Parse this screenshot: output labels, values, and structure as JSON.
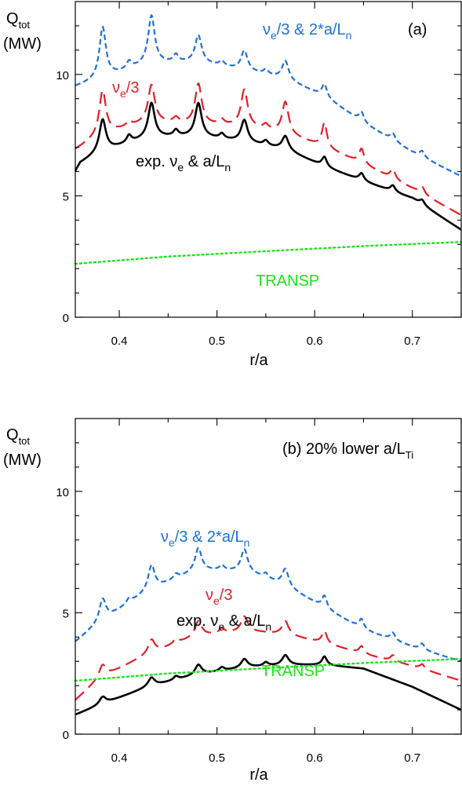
{
  "chart_data": [
    {
      "panel": "(a)",
      "type": "line",
      "title": "",
      "panel_label": "(a)",
      "ylabel": "Q",
      "ylabel_sub": "tot",
      "yunit": "(MW)",
      "xlabel": "r/a",
      "xlim": [
        0.355,
        0.75
      ],
      "ylim": [
        0,
        13
      ],
      "xticks": [
        0.4,
        0.5,
        0.6,
        0.7
      ],
      "xtick_labels": [
        "0.4",
        "0.5",
        "0.6",
        "0.7"
      ],
      "yticks": [
        0,
        5,
        10
      ],
      "ytick_labels": [
        "0",
        "5",
        "10"
      ],
      "grid": false,
      "series": [
        {
          "name": "ν_e/3 & 2*a/L_n",
          "color": "#1f6fd6",
          "style": "short-dash",
          "base": [
            [
              0.355,
              9.5
            ],
            [
              0.38,
              9.8
            ],
            [
              0.43,
              10.45
            ],
            [
              0.48,
              10.5
            ],
            [
              0.53,
              10.15
            ],
            [
              0.57,
              9.8
            ],
            [
              0.61,
              9.1
            ],
            [
              0.65,
              8.0
            ],
            [
              0.7,
              6.8
            ],
            [
              0.75,
              5.8
            ]
          ],
          "peaks": [
            [
              0.383,
              2.1,
              0.004
            ],
            [
              0.41,
              0.3,
              0.003
            ],
            [
              0.433,
              1.95,
              0.004
            ],
            [
              0.458,
              0.3,
              0.003
            ],
            [
              0.481,
              1.1,
              0.004
            ],
            [
              0.505,
              0.2,
              0.003
            ],
            [
              0.528,
              0.8,
              0.004
            ],
            [
              0.55,
              0.2,
              0.003
            ],
            [
              0.57,
              0.75,
              0.004
            ],
            [
              0.61,
              0.5,
              0.003
            ],
            [
              0.648,
              0.4,
              0.003
            ],
            [
              0.68,
              0.3,
              0.003
            ],
            [
              0.71,
              0.25,
              0.003
            ]
          ]
        },
        {
          "name": "ν_e/3",
          "color": "#e21f26",
          "style": "long-dash",
          "base": [
            [
              0.355,
              6.9
            ],
            [
              0.38,
              7.5
            ],
            [
              0.43,
              8.05
            ],
            [
              0.48,
              7.95
            ],
            [
              0.53,
              7.85
            ],
            [
              0.57,
              7.55
            ],
            [
              0.61,
              7.0
            ],
            [
              0.65,
              6.3
            ],
            [
              0.7,
              5.3
            ],
            [
              0.75,
              4.2
            ]
          ],
          "peaks": [
            [
              0.383,
              1.8,
              0.004
            ],
            [
              0.41,
              0.2,
              0.003
            ],
            [
              0.433,
              1.5,
              0.004
            ],
            [
              0.458,
              0.2,
              0.003
            ],
            [
              0.481,
              1.65,
              0.004
            ],
            [
              0.505,
              0.2,
              0.003
            ],
            [
              0.528,
              1.5,
              0.004
            ],
            [
              0.55,
              0.2,
              0.003
            ],
            [
              0.57,
              1.3,
              0.004
            ],
            [
              0.61,
              1.0,
              0.003
            ],
            [
              0.648,
              0.6,
              0.003
            ],
            [
              0.68,
              0.4,
              0.003
            ],
            [
              0.71,
              0.3,
              0.003
            ]
          ]
        },
        {
          "name": "exp. ν_e & a/L_n",
          "color": "#000000",
          "style": "solid",
          "base": [
            [
              0.355,
              6.0
            ],
            [
              0.36,
              6.35
            ],
            [
              0.38,
              6.8
            ],
            [
              0.43,
              7.4
            ],
            [
              0.48,
              7.45
            ],
            [
              0.53,
              7.2
            ],
            [
              0.57,
              6.9
            ],
            [
              0.61,
              6.2
            ],
            [
              0.65,
              5.6
            ],
            [
              0.7,
              4.9
            ],
            [
              0.75,
              3.6
            ]
          ],
          "peaks": [
            [
              0.383,
              1.3,
              0.004
            ],
            [
              0.41,
              0.3,
              0.003
            ],
            [
              0.433,
              1.4,
              0.004
            ],
            [
              0.458,
              0.25,
              0.003
            ],
            [
              0.481,
              1.35,
              0.004
            ],
            [
              0.505,
              0.2,
              0.003
            ],
            [
              0.528,
              0.9,
              0.004
            ],
            [
              0.55,
              0.2,
              0.003
            ],
            [
              0.57,
              0.55,
              0.004
            ],
            [
              0.61,
              0.4,
              0.003
            ],
            [
              0.648,
              0.3,
              0.003
            ],
            [
              0.68,
              0.25,
              0.003
            ],
            [
              0.71,
              0.2,
              0.003
            ]
          ]
        },
        {
          "name": "TRANSP",
          "color": "#19e619",
          "style": "dotted",
          "base": [
            [
              0.355,
              2.2
            ],
            [
              0.45,
              2.5
            ],
            [
              0.55,
              2.72
            ],
            [
              0.65,
              2.93
            ],
            [
              0.75,
              3.1
            ]
          ],
          "peaks": []
        }
      ]
    },
    {
      "panel": "(b)",
      "type": "line",
      "title": "",
      "panel_label": "(b)  20% lower a/L",
      "panel_label_sub": "Ti",
      "ylabel": "Q",
      "ylabel_sub": "tot",
      "yunit": "(MW)",
      "xlabel": "r/a",
      "xlim": [
        0.355,
        0.75
      ],
      "ylim": [
        0,
        13
      ],
      "xticks": [
        0.4,
        0.5,
        0.6,
        0.7
      ],
      "xtick_labels": [
        "0.4",
        "0.5",
        "0.6",
        "0.7"
      ],
      "yticks": [
        0,
        5,
        10
      ],
      "ytick_labels": [
        "0",
        "5",
        "10"
      ],
      "grid": false,
      "series": [
        {
          "name": "ν_e/3 & 2*a/L_n",
          "color": "#1f6fd6",
          "style": "short-dash",
          "base": [
            [
              0.355,
              3.8
            ],
            [
              0.38,
              4.6
            ],
            [
              0.43,
              5.9
            ],
            [
              0.48,
              6.75
            ],
            [
              0.53,
              6.7
            ],
            [
              0.57,
              6.1
            ],
            [
              0.61,
              5.2
            ],
            [
              0.65,
              4.3
            ],
            [
              0.7,
              3.6
            ],
            [
              0.75,
              3.0
            ]
          ],
          "peaks": [
            [
              0.383,
              0.9,
              0.004
            ],
            [
              0.41,
              0.2,
              0.003
            ],
            [
              0.433,
              1.0,
              0.004
            ],
            [
              0.458,
              0.2,
              0.003
            ],
            [
              0.481,
              0.9,
              0.004
            ],
            [
              0.505,
              0.2,
              0.003
            ],
            [
              0.528,
              0.9,
              0.004
            ],
            [
              0.55,
              0.2,
              0.003
            ],
            [
              0.57,
              0.7,
              0.004
            ],
            [
              0.61,
              0.5,
              0.003
            ],
            [
              0.648,
              0.4,
              0.003
            ],
            [
              0.68,
              0.3,
              0.003
            ],
            [
              0.71,
              0.25,
              0.003
            ]
          ]
        },
        {
          "name": "ν_e/3",
          "color": "#e21f26",
          "style": "long-dash",
          "base": [
            [
              0.355,
              1.4
            ],
            [
              0.38,
              2.3
            ],
            [
              0.43,
              3.3
            ],
            [
              0.48,
              4.05
            ],
            [
              0.53,
              4.25
            ],
            [
              0.57,
              4.1
            ],
            [
              0.61,
              3.75
            ],
            [
              0.65,
              3.3
            ],
            [
              0.7,
              2.8
            ],
            [
              0.75,
              2.2
            ]
          ],
          "peaks": [
            [
              0.383,
              0.5,
              0.004
            ],
            [
              0.433,
              0.55,
              0.004
            ],
            [
              0.458,
              0.2,
              0.003
            ],
            [
              0.481,
              0.6,
              0.004
            ],
            [
              0.505,
              0.2,
              0.003
            ],
            [
              0.528,
              0.6,
              0.004
            ],
            [
              0.57,
              0.55,
              0.004
            ],
            [
              0.61,
              0.5,
              0.003
            ],
            [
              0.648,
              0.3,
              0.003
            ],
            [
              0.68,
              0.25,
              0.003
            ],
            [
              0.71,
              0.2,
              0.003
            ]
          ]
        },
        {
          "name": "exp. ν_e & a/L_n",
          "color": "#000000",
          "style": "solid",
          "base": [
            [
              0.355,
              0.8
            ],
            [
              0.38,
              1.2
            ],
            [
              0.43,
              1.95
            ],
            [
              0.48,
              2.45
            ],
            [
              0.53,
              2.75
            ],
            [
              0.57,
              2.85
            ],
            [
              0.61,
              2.85
            ],
            [
              0.65,
              2.7
            ],
            [
              0.7,
              1.95
            ],
            [
              0.75,
              1.0
            ]
          ],
          "peaks": [
            [
              0.383,
              0.3,
              0.004
            ],
            [
              0.433,
              0.35,
              0.004
            ],
            [
              0.458,
              0.15,
              0.003
            ],
            [
              0.481,
              0.4,
              0.004
            ],
            [
              0.505,
              0.15,
              0.003
            ],
            [
              0.528,
              0.35,
              0.004
            ],
            [
              0.55,
              0.15,
              0.003
            ],
            [
              0.57,
              0.4,
              0.004
            ],
            [
              0.61,
              0.35,
              0.003
            ]
          ]
        },
        {
          "name": "TRANSP",
          "color": "#19e619",
          "style": "dotted",
          "base": [
            [
              0.355,
              2.2
            ],
            [
              0.45,
              2.5
            ],
            [
              0.55,
              2.72
            ],
            [
              0.65,
              2.93
            ],
            [
              0.75,
              3.1
            ]
          ],
          "peaks": []
        }
      ]
    }
  ],
  "annotations": {
    "a": {
      "blue_main": "ν",
      "blue_sub": "e",
      "blue_rest": "/3 & 2*a/L",
      "blue_sub2": "n",
      "red_main": "ν",
      "red_sub": "e",
      "red_rest": "/3",
      "black_main": "exp. ν",
      "black_sub": "e",
      "black_rest": " & a/L",
      "black_sub2": "n",
      "green": "TRANSP"
    },
    "b": {
      "blue_main": "ν",
      "blue_sub": "e",
      "blue_rest": "/3 & 2*a/L",
      "blue_sub2": "n",
      "red_main": "ν",
      "red_sub": "e",
      "red_rest": "/3",
      "black_main": "exp. ν",
      "black_sub": "e",
      "black_rest": " & a/L",
      "black_sub2": "n",
      "green": "TRANSP"
    }
  }
}
